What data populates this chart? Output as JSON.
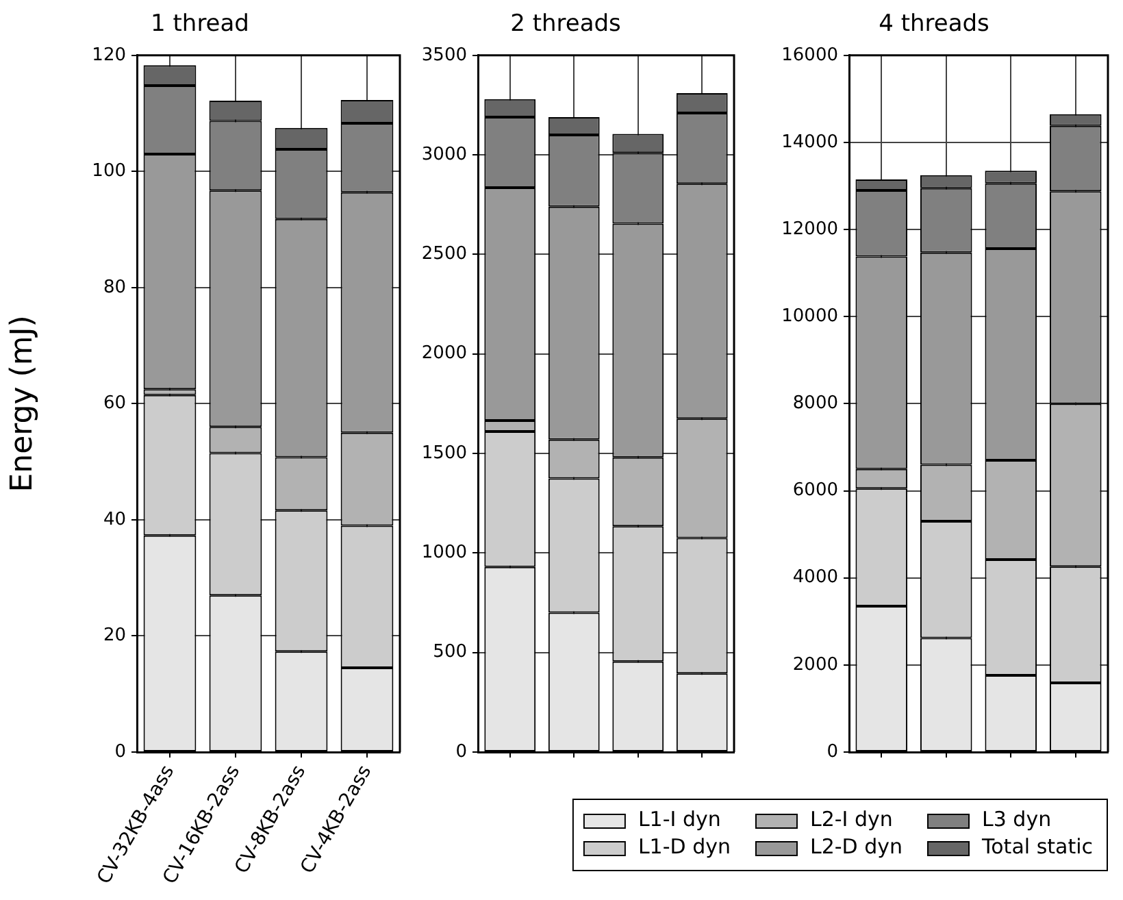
{
  "chart_data": [
    {
      "type": "bar",
      "title": "1 thread",
      "ylabel": "Energy (mJ)",
      "categories": [
        "CV-32KB-4ass",
        "CV-16KB-2ass",
        "CV-8KB-2ass",
        "CV-4KB-2ass"
      ],
      "stacked": true,
      "ylim": [
        0,
        120
      ],
      "yticks": [
        0,
        20,
        40,
        60,
        80,
        100,
        120
      ],
      "grid": true,
      "legend": "bottom",
      "series": [
        {
          "name": "L1-I dyn",
          "color": "#e5e5e5",
          "values": [
            37.3,
            27.0,
            17.3,
            14.5
          ]
        },
        {
          "name": "L1-D dyn",
          "color": "#cccccc",
          "values": [
            24.2,
            24.5,
            24.3,
            24.5
          ]
        },
        {
          "name": "L2-I dyn",
          "color": "#b2b2b2",
          "values": [
            1.0,
            4.5,
            9.2,
            16.0
          ]
        },
        {
          "name": "L2-D dyn",
          "color": "#999999",
          "values": [
            40.5,
            40.7,
            41.0,
            41.4
          ]
        },
        {
          "name": "L3 dyn",
          "color": "#808080",
          "values": [
            11.8,
            12.0,
            12.0,
            11.9
          ]
        },
        {
          "name": "Total static",
          "color": "#666666",
          "values": [
            3.5,
            3.5,
            3.7,
            4.0
          ]
        }
      ]
    },
    {
      "type": "bar",
      "title": "2 threads",
      "categories": [
        null,
        null,
        null,
        null
      ],
      "stacked": true,
      "ylim": [
        0,
        3500
      ],
      "yticks": [
        0,
        500,
        1000,
        1500,
        2000,
        2500,
        3000,
        3500
      ],
      "grid": true,
      "tick_labels": "y",
      "series": [
        {
          "color": "#e5e5e5",
          "values": [
            930,
            700,
            455,
            395
          ]
        },
        {
          "color": "#cccccc",
          "values": [
            680,
            675,
            680,
            680
          ]
        },
        {
          "color": "#b2b2b2",
          "values": [
            55,
            195,
            345,
            600
          ]
        },
        {
          "color": "#999999",
          "values": [
            1170,
            1170,
            1175,
            1180
          ]
        },
        {
          "color": "#808080",
          "values": [
            355,
            360,
            355,
            355
          ]
        },
        {
          "color": "#666666",
          "values": [
            90,
            90,
            95,
            100
          ]
        }
      ]
    },
    {
      "type": "bar",
      "title": "4 threads",
      "categories": [
        null,
        null,
        null,
        null
      ],
      "stacked": true,
      "ylim": [
        0,
        16000
      ],
      "yticks": [
        0,
        2000,
        4000,
        6000,
        8000,
        10000,
        12000,
        14000,
        16000
      ],
      "grid": true,
      "tick_labels": "y",
      "series": [
        {
          "color": "#e5e5e5",
          "values": [
            3350,
            2620,
            1760,
            1590
          ]
        },
        {
          "color": "#cccccc",
          "values": [
            2700,
            2680,
            2660,
            2670
          ]
        },
        {
          "color": "#b2b2b2",
          "values": [
            450,
            1300,
            2280,
            3740
          ]
        },
        {
          "color": "#999999",
          "values": [
            4880,
            4870,
            4860,
            4880
          ]
        },
        {
          "color": "#808080",
          "values": [
            1520,
            1480,
            1500,
            1500
          ]
        },
        {
          "color": "#666666",
          "values": [
            250,
            300,
            290,
            270
          ]
        }
      ]
    }
  ]
}
